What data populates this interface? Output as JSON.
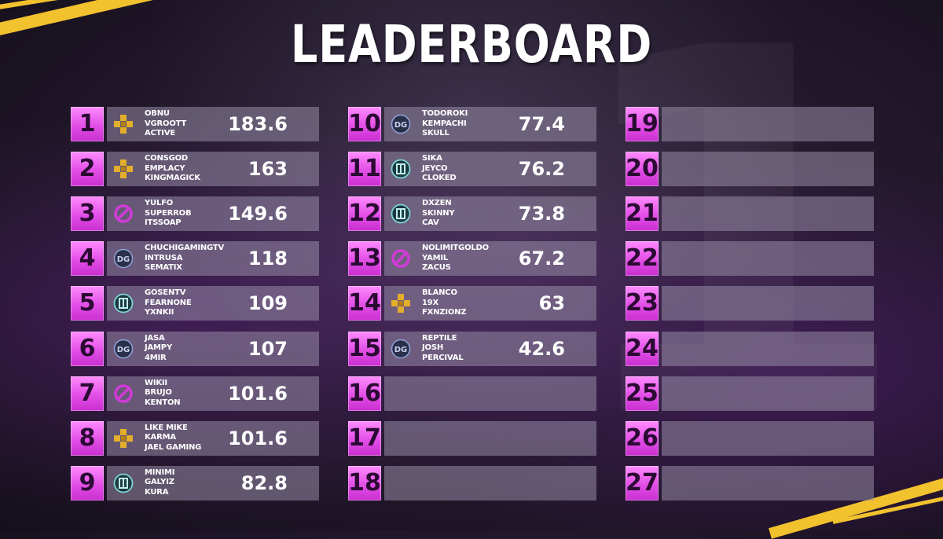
{
  "title": "LEADERBOARD",
  "colors": {
    "accent": "#e24ee6",
    "stripe": "#f2c12e",
    "bar": "#968ca5"
  },
  "columns": [
    [
      {
        "rank": "1",
        "logo": "gold-cross-logo-icon",
        "players": [
          "OBNU",
          "VGROOTT",
          "ACTIVE"
        ],
        "score": "183.6"
      },
      {
        "rank": "2",
        "logo": "gold-cross-logo-icon",
        "players": [
          "CONSGOD",
          "EMPLACY",
          "KINGMAGICK"
        ],
        "score": "163"
      },
      {
        "rank": "3",
        "logo": "purple-ring-logo-icon",
        "players": [
          "YULFO",
          "SUPERROB",
          "ITSSOAP"
        ],
        "score": "149.6"
      },
      {
        "rank": "4",
        "logo": "blue-shield-logo-icon",
        "players": [
          "CHUCHIGAMINGTV",
          "INTRUSA",
          "SEMATIX"
        ],
        "score": "118"
      },
      {
        "rank": "5",
        "logo": "teal-emblem-logo-icon",
        "players": [
          "GOSENTV",
          "FEARNONE",
          "YXNKII"
        ],
        "score": "109"
      },
      {
        "rank": "6",
        "logo": "blue-shield-logo-icon",
        "players": [
          "JASA",
          "JAMPY",
          "4MIR"
        ],
        "score": "107"
      },
      {
        "rank": "7",
        "logo": "purple-ring-logo-icon",
        "players": [
          "WIKII",
          "BRUJO",
          "KENTON"
        ],
        "score": "101.6"
      },
      {
        "rank": "8",
        "logo": "gold-cross-logo-icon",
        "players": [
          "LIKE MIKE",
          "KARMA",
          "JAEL GAMING"
        ],
        "score": "101.6"
      },
      {
        "rank": "9",
        "logo": "teal-emblem-logo-icon",
        "players": [
          "MINIMI",
          "GALYIZ",
          "KURA"
        ],
        "score": "82.8"
      }
    ],
    [
      {
        "rank": "10",
        "logo": "blue-shield-logo-icon",
        "players": [
          "TODOROKI",
          "KEMPACHI",
          "SKULL"
        ],
        "score": "77.4"
      },
      {
        "rank": "11",
        "logo": "teal-emblem-logo-icon",
        "players": [
          "SIKA",
          "JEYCO",
          "CLOKED"
        ],
        "score": "76.2"
      },
      {
        "rank": "12",
        "logo": "teal-emblem-logo-icon",
        "players": [
          "DXZEN",
          "SKINNY",
          "CAV"
        ],
        "score": "73.8"
      },
      {
        "rank": "13",
        "logo": "purple-ring-logo-icon",
        "players": [
          "NOLIMITGOLDO",
          "YAMIL",
          "ZACUS"
        ],
        "score": "67.2"
      },
      {
        "rank": "14",
        "logo": "gold-cross-logo-icon",
        "players": [
          "BLANCO",
          "19X",
          "FXNZIONZ"
        ],
        "score": "63"
      },
      {
        "rank": "15",
        "logo": "blue-shield-logo-icon",
        "players": [
          "REPTILE",
          "JOSH",
          "PERCIVAL"
        ],
        "score": "42.6"
      },
      {
        "rank": "16",
        "logo": "",
        "players": [],
        "score": ""
      },
      {
        "rank": "17",
        "logo": "",
        "players": [],
        "score": ""
      },
      {
        "rank": "18",
        "logo": "",
        "players": [],
        "score": ""
      }
    ],
    [
      {
        "rank": "19",
        "logo": "",
        "players": [],
        "score": ""
      },
      {
        "rank": "20",
        "logo": "",
        "players": [],
        "score": ""
      },
      {
        "rank": "21",
        "logo": "",
        "players": [],
        "score": ""
      },
      {
        "rank": "22",
        "logo": "",
        "players": [],
        "score": ""
      },
      {
        "rank": "23",
        "logo": "",
        "players": [],
        "score": ""
      },
      {
        "rank": "24",
        "logo": "",
        "players": [],
        "score": ""
      },
      {
        "rank": "25",
        "logo": "",
        "players": [],
        "score": ""
      },
      {
        "rank": "26",
        "logo": "",
        "players": [],
        "score": ""
      },
      {
        "rank": "27",
        "logo": "",
        "players": [],
        "score": ""
      }
    ]
  ]
}
